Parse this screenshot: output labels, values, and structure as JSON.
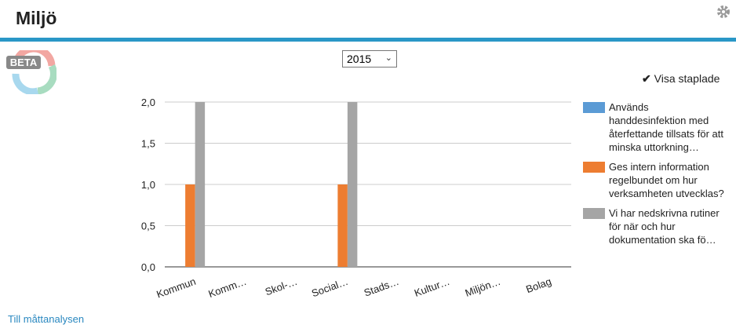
{
  "header": {
    "title": "Miljö"
  },
  "badge": "BETA",
  "year_select": "2015",
  "toggle_label": "Visa staplade",
  "footer_link": "Till måttanalysen",
  "chart_data": {
    "type": "bar",
    "categories": [
      "Kommun",
      "Komm…",
      "Skol-…",
      "Social…",
      "Stads…",
      "Kultur…",
      "Miljön…",
      "Bolag"
    ],
    "series": [
      {
        "name": "Används handdesinfektion med återfettande tillsats för att minska uttorkning…",
        "color": "#5b9bd5",
        "values": [
          0,
          0,
          0,
          0,
          0,
          0,
          0,
          0
        ]
      },
      {
        "name": "Ges intern information regelbundet om hur verksamheten utvecklas?",
        "color": "#ed7d31",
        "values": [
          1,
          0,
          0,
          1,
          0,
          0,
          0,
          0
        ]
      },
      {
        "name": "Vi har nedskrivna rutiner för när och hur dokumentation ska fö…",
        "color": "#a5a5a5",
        "values": [
          2,
          0,
          0,
          2,
          0,
          0,
          0,
          0
        ]
      }
    ],
    "ylim": [
      0,
      2
    ],
    "yticks": [
      {
        "value": 0,
        "label": "0,0"
      },
      {
        "value": 0.5,
        "label": "0,5"
      },
      {
        "value": 1,
        "label": "1,0"
      },
      {
        "value": 1.5,
        "label": "1,5"
      },
      {
        "value": 2,
        "label": "2,0"
      }
    ],
    "grid": true,
    "legend": "right"
  }
}
